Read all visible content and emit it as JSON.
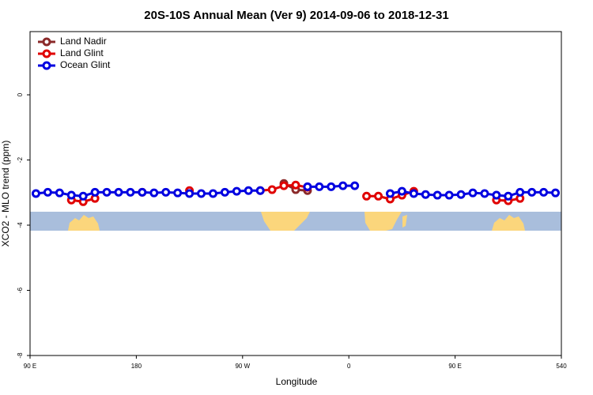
{
  "chart_data": {
    "type": "line",
    "title": "20S-10S Annual Mean (Ver 9)   2014-09-06 to 2018-12-31",
    "xlabel": "Longitude",
    "ylabel": "XCO2 - MLO trend (ppm)",
    "x": [
      95,
      105,
      115,
      125,
      135,
      145,
      155,
      165,
      175,
      185,
      195,
      205,
      215,
      225,
      235,
      245,
      255,
      265,
      275,
      285,
      295,
      305,
      315,
      325,
      335,
      345,
      355,
      365,
      375,
      385,
      395,
      405,
      415,
      425,
      435,
      445,
      455,
      465,
      475,
      485,
      495,
      505,
      515,
      525,
      535
    ],
    "series": [
      {
        "name": "Land Nadir",
        "color": "#8b2a2a",
        "values": [
          null,
          null,
          null,
          null,
          null,
          null,
          null,
          null,
          null,
          null,
          null,
          null,
          null,
          null,
          null,
          null,
          null,
          null,
          null,
          null,
          null,
          -2.72,
          -2.91,
          -2.94,
          null,
          null,
          null,
          null,
          null,
          null,
          null,
          null,
          null,
          null,
          null,
          null,
          null,
          null,
          null,
          null,
          null,
          null,
          null,
          null,
          null
        ]
      },
      {
        "name": "Land Glint",
        "color": "#e00000",
        "values": [
          null,
          null,
          null,
          -3.23,
          -3.28,
          -3.18,
          null,
          null,
          null,
          -2.99,
          null,
          null,
          null,
          -2.94,
          null,
          null,
          null,
          null,
          null,
          -2.94,
          -2.91,
          -2.79,
          -2.77,
          -2.84,
          null,
          null,
          null,
          null,
          -3.11,
          -3.11,
          -3.2,
          -3.08,
          -2.96,
          null,
          null,
          null,
          null,
          null,
          null,
          -3.23,
          -3.25,
          -3.18,
          null,
          null,
          null
        ]
      },
      {
        "name": "Ocean Glint",
        "color": "#0000e0",
        "values": [
          -3.03,
          -2.99,
          -3.01,
          -3.08,
          -3.11,
          -2.99,
          -2.99,
          -2.99,
          -2.99,
          -2.99,
          -3.01,
          -2.99,
          -3.01,
          -3.03,
          -3.03,
          -3.03,
          -2.99,
          -2.96,
          -2.94,
          -2.94,
          null,
          null,
          null,
          -2.82,
          -2.82,
          -2.82,
          -2.79,
          -2.79,
          null,
          null,
          -3.03,
          -2.96,
          -3.03,
          -3.06,
          -3.08,
          -3.08,
          -3.06,
          -3.01,
          -3.03,
          -3.08,
          -3.11,
          -2.99,
          -2.99,
          -2.99,
          -3.01
        ]
      }
    ],
    "xlim": [
      90,
      540
    ],
    "xticks": [
      {
        "value": 90,
        "label": "90 E"
      },
      180,
      {
        "value": 270,
        "label": "90 W"
      },
      {
        "value": 360,
        "label": "0"
      },
      {
        "value": 450,
        "label": "90 E"
      },
      540
    ],
    "ylim": [
      -8,
      1.94
    ],
    "yticks": [
      0,
      -2,
      -4,
      -6,
      -8
    ],
    "legend": "top-left"
  }
}
